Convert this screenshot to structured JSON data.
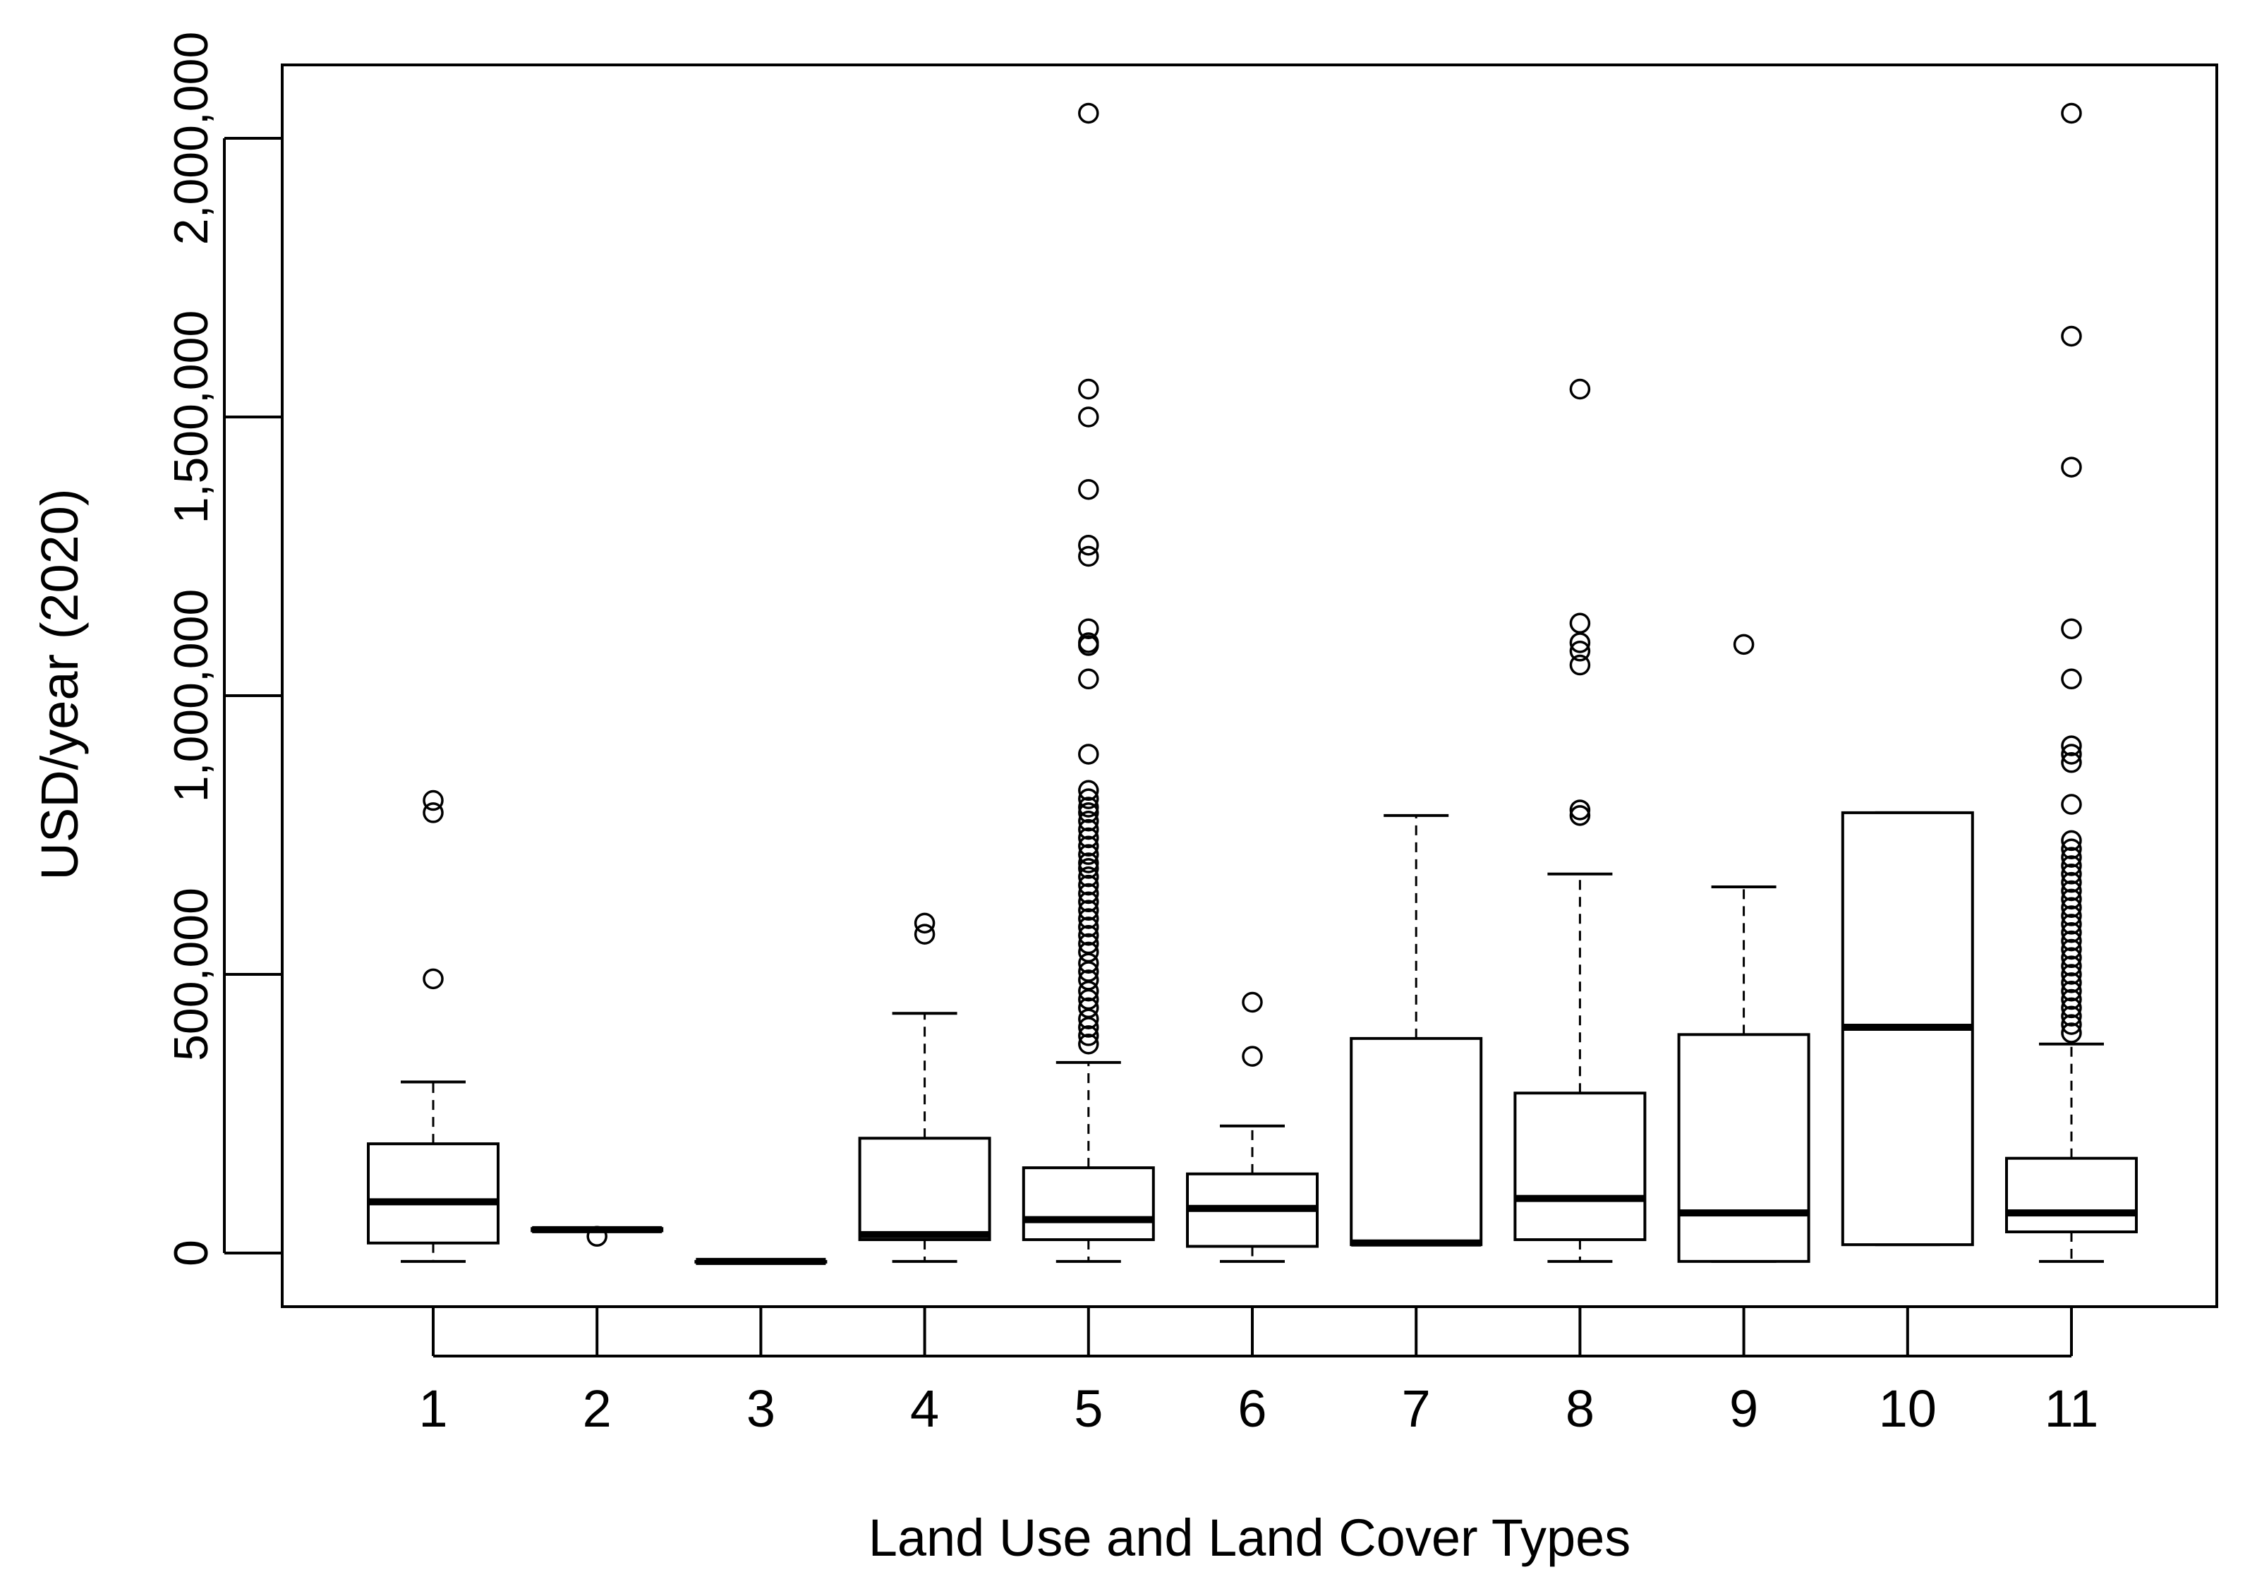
{
  "chart_data": {
    "type": "box",
    "title": "",
    "xlabel": "Land Use and Land Cover Types",
    "ylabel": "USD/year (2020)",
    "ylim": [
      -100000,
      2130000
    ],
    "y_ticks": [
      0,
      500000,
      1000000,
      1500000,
      2000000
    ],
    "y_tick_labels": [
      "0",
      "500,000",
      "1,000,000",
      "1,500,000",
      "2,000,000"
    ],
    "categories": [
      "1",
      "2",
      "3",
      "4",
      "5",
      "6",
      "7",
      "8",
      "9",
      "10",
      "11"
    ],
    "grid": false,
    "legend": "none",
    "boxes": [
      {
        "category": "1",
        "whisker_low": -15000,
        "q1": 18000,
        "median": 92000,
        "q3": 196000,
        "whisker_high": 307000,
        "outliers": [
          492000,
          790000,
          812000
        ]
      },
      {
        "category": "2",
        "whisker_low": 40000,
        "q1": 40000,
        "median": 42000,
        "q3": 44000,
        "whisker_high": 44000,
        "outliers": [
          30000
        ]
      },
      {
        "category": "3",
        "whisker_low": -15000,
        "q1": -15000,
        "median": -15000,
        "q3": -15000,
        "whisker_high": -15000,
        "outliers": []
      },
      {
        "category": "4",
        "whisker_low": -15000,
        "q1": 24000,
        "median": 33000,
        "q3": 206000,
        "whisker_high": 430000,
        "outliers": [
          572000,
          592000
        ]
      },
      {
        "category": "5",
        "whisker_low": -15000,
        "q1": 24000,
        "median": 60000,
        "q3": 153000,
        "whisker_high": 342000,
        "outliers": [
          375000,
          390000,
          405000,
          420000,
          440000,
          455000,
          470000,
          490000,
          505000,
          520000,
          540000,
          555000,
          570000,
          585000,
          600000,
          615000,
          630000,
          645000,
          660000,
          675000,
          690000,
          700000,
          715000,
          730000,
          745000,
          760000,
          775000,
          790000,
          800000,
          815000,
          830000,
          895000,
          1030000,
          1090000,
          1095000,
          1120000,
          1250000,
          1270000,
          1370000,
          1500000,
          1550000,
          2045000
        ]
      },
      {
        "category": "6",
        "whisker_low": -15000,
        "q1": 12000,
        "median": 80000,
        "q3": 142000,
        "whisker_high": 228000,
        "outliers": [
          353000,
          450000
        ]
      },
      {
        "category": "7",
        "whisker_low": 15000,
        "q1": 15000,
        "median": 18000,
        "q3": 385000,
        "whisker_high": 785000,
        "outliers": []
      },
      {
        "category": "8",
        "whisker_low": -15000,
        "q1": 24000,
        "median": 98000,
        "q3": 287000,
        "whisker_high": 680000,
        "outliers": [
          785000,
          795000,
          1055000,
          1080000,
          1095000,
          1130000,
          1550000
        ]
      },
      {
        "category": "9",
        "whisker_low": -15000,
        "q1": -15000,
        "median": 72000,
        "q3": 392000,
        "whisker_high": 657000,
        "outliers": [
          1092000
        ]
      },
      {
        "category": "10",
        "whisker_low": 15000,
        "q1": 15000,
        "median": 405000,
        "q3": 790000,
        "whisker_high": 790000,
        "outliers": []
      },
      {
        "category": "11",
        "whisker_low": -15000,
        "q1": 38000,
        "median": 72000,
        "q3": 170000,
        "whisker_high": 375000,
        "outliers": [
          395000,
          410000,
          425000,
          440000,
          455000,
          470000,
          485000,
          500000,
          515000,
          530000,
          545000,
          560000,
          575000,
          590000,
          605000,
          620000,
          635000,
          650000,
          665000,
          680000,
          695000,
          710000,
          725000,
          740000,
          805000,
          880000,
          895000,
          910000,
          1030000,
          1120000,
          1410000,
          1645000,
          2045000
        ]
      }
    ]
  }
}
